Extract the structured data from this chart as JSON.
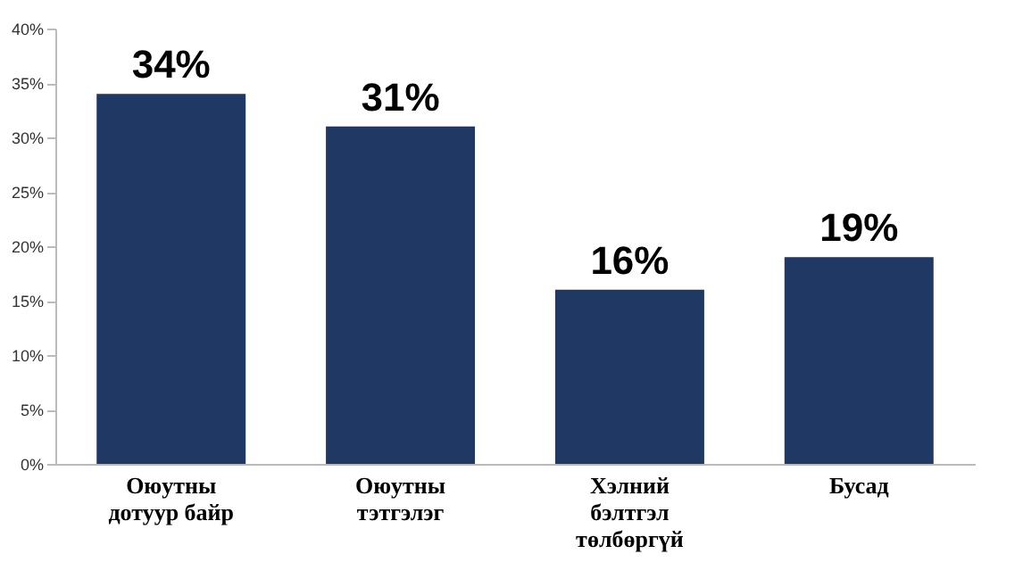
{
  "chart_data": {
    "type": "bar",
    "categories": [
      "Оюутны\nдотуур байр",
      "Оюутны\nтэтгэлэг",
      "Хэлний\nбэлтгэл\nтөлбөргүй",
      "Бусад"
    ],
    "values": [
      34,
      31,
      16,
      19
    ],
    "value_labels": [
      "34%",
      "31%",
      "16%",
      "19%"
    ],
    "color": "#1f3864",
    "ylim": [
      0,
      40
    ],
    "yticks": [
      {
        "value": 0,
        "label": "0%"
      },
      {
        "value": 5,
        "label": "5%"
      },
      {
        "value": 10,
        "label": "10%"
      },
      {
        "value": 15,
        "label": "15%"
      },
      {
        "value": 20,
        "label": "20%"
      },
      {
        "value": 25,
        "label": "25%"
      },
      {
        "value": 30,
        "label": "30%"
      },
      {
        "value": 35,
        "label": "35%"
      },
      {
        "value": 40,
        "label": "40%"
      }
    ],
    "grid": false
  }
}
